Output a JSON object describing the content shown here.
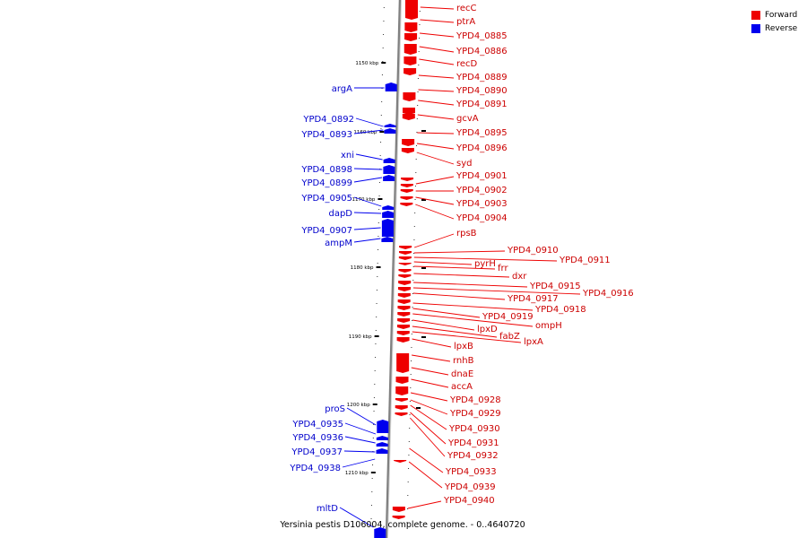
{
  "caption": "Yersinia pestis D106004, complete genome. - 0..4640720",
  "legend": {
    "forward_label": "Forward",
    "reverse_label": "Reverse",
    "forward_color": "#ee0000",
    "reverse_color": "#0000ee"
  },
  "colors": {
    "forward": "#ee0000",
    "reverse": "#0000ee",
    "backbone": "#808080"
  },
  "ticks": [
    "1150 kbp",
    "1160 kbp",
    "1170 kbp",
    "1180 kbp",
    "1190 kbp",
    "1200 kbp",
    "1210 kbp"
  ],
  "reverse_genes": [
    "argA",
    "YPD4_0892",
    "YPD4_0893",
    "xni",
    "YPD4_0898",
    "YPD4_0899",
    "YPD4_0905",
    "dapD",
    "YPD4_0907",
    "ampM",
    "proS",
    "YPD4_0935",
    "YPD4_0936",
    "YPD4_0937",
    "YPD4_0938",
    "mltD"
  ],
  "forward_genes": [
    "recC",
    "ptrA",
    "YPD4_0885",
    "YPD4_0886",
    "recD",
    "YPD4_0889",
    "YPD4_0890",
    "YPD4_0891",
    "gcvA",
    "YPD4_0895",
    "YPD4_0896",
    "syd",
    "YPD4_0901",
    "YPD4_0902",
    "YPD4_0903",
    "YPD4_0904",
    "rpsB",
    "YPD4_0910",
    "YPD4_0911",
    "pyrH",
    "frr",
    "dxr",
    "YPD4_0915",
    "YPD4_0916",
    "YPD4_0917",
    "YPD4_0918",
    "YPD4_0919",
    "ompH",
    "lpxD",
    "fabZ",
    "lpxA",
    "lpxB",
    "rnhB",
    "dnaE",
    "accA",
    "YPD4_0928",
    "YPD4_0929",
    "YPD4_0930",
    "YPD4_0931",
    "YPD4_0932",
    "YPD4_0933",
    "YPD4_0939",
    "YPD4_0940"
  ]
}
